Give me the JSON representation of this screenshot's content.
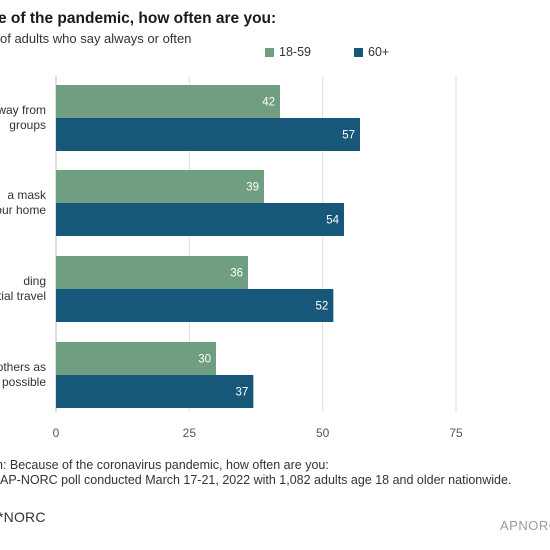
{
  "header": {
    "title": "e of the pandemic, how often are you:",
    "subtitle": "of adults who say always or often"
  },
  "legend": {
    "items": [
      {
        "label": "18-59",
        "color": "#6f9e80"
      },
      {
        "label": "60+",
        "color": "#16577a"
      }
    ]
  },
  "chart_data": {
    "type": "bar",
    "orientation": "horizontal",
    "categories": [
      [
        "way from",
        "groups"
      ],
      [
        "a mask",
        "our home"
      ],
      [
        "ding",
        "tial travel"
      ],
      [
        "others as",
        "possible"
      ]
    ],
    "series": [
      {
        "name": "18-59",
        "values": [
          42,
          39,
          36,
          30
        ],
        "color": "#6f9e80"
      },
      {
        "name": "60+",
        "values": [
          57,
          54,
          52,
          37
        ],
        "color": "#16577a"
      }
    ],
    "xlim": [
      0,
      75
    ],
    "xticks": [
      0,
      25,
      50,
      75
    ],
    "grid": true,
    "legend_position": "top-right",
    "data_labels": true
  },
  "footer": {
    "question": "n: Because of the coronavirus pandemic, how often are you:",
    "source": "AP-NORC poll conducted March 17-21, 2022 with 1,082 adults age 18 and older nationwide.",
    "logo_left": "*NORC",
    "logo_right": "APNORC"
  }
}
